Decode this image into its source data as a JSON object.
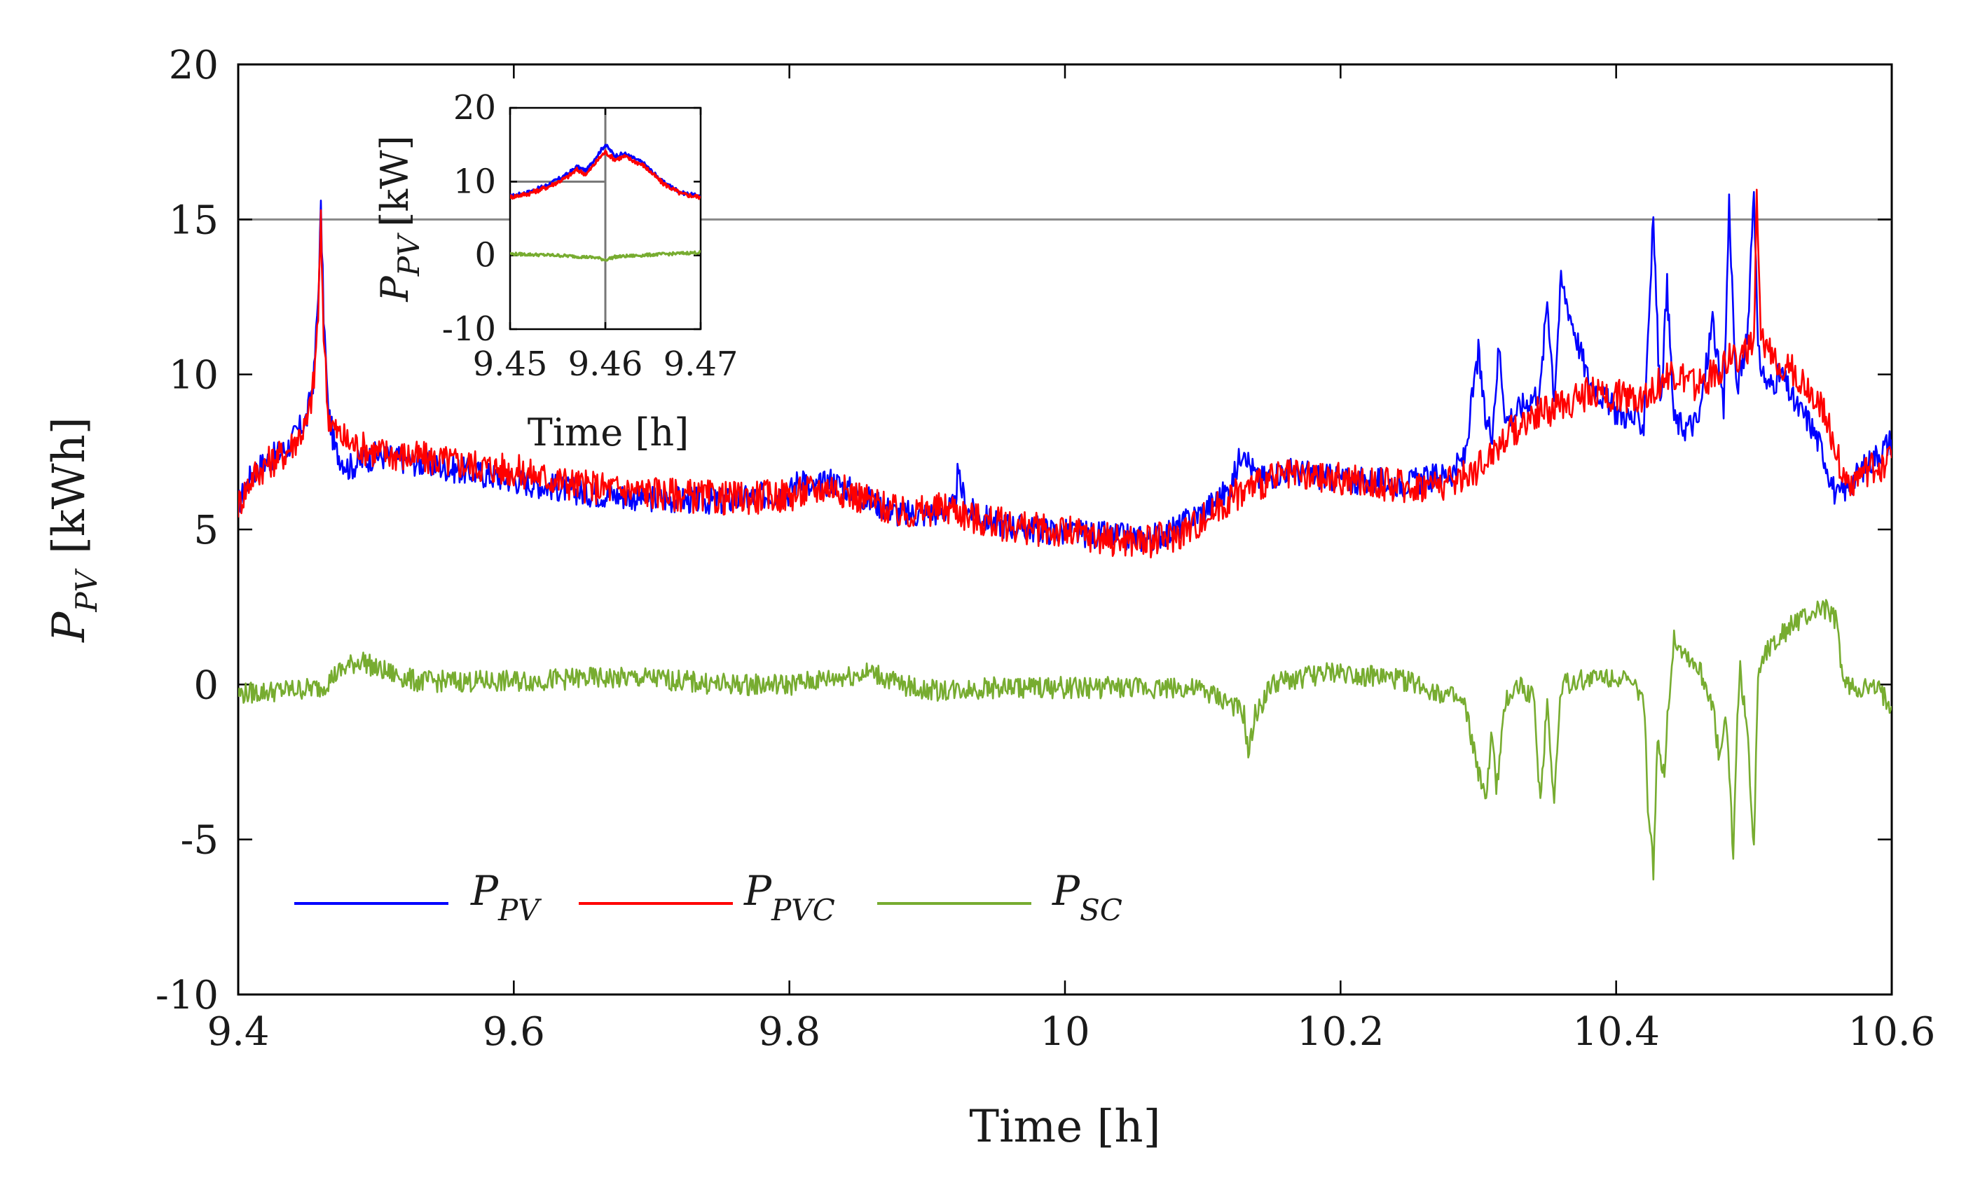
{
  "chart_data": [
    {
      "id": "main",
      "type": "line",
      "title": "",
      "xlabel": "Time [h]",
      "ylabel_main": "P",
      "ylabel_sub": "PV",
      "ylabel_unit": "[kWh]",
      "xlim": [
        9.4,
        10.6
      ],
      "ylim": [
        -10,
        20
      ],
      "xticks": [
        9.4,
        9.6,
        9.8,
        10,
        10.2,
        10.4,
        10.6
      ],
      "xtick_labels": [
        "9.4",
        "9.6",
        "9.8",
        "10",
        "10.2",
        "10.4",
        "10.6"
      ],
      "yticks": [
        -10,
        -5,
        0,
        5,
        10,
        15,
        20
      ],
      "ytick_labels": [
        "-10",
        "-5",
        "0",
        "5",
        "10",
        "15",
        "20"
      ],
      "reference_line_y": 15,
      "legend": [
        {
          "main": "P",
          "sub": "PV",
          "color": "#0000ff"
        },
        {
          "main": "P",
          "sub": "PVC",
          "color": "#ff0000"
        },
        {
          "main": "P",
          "sub": "SC",
          "color": "#77ac30"
        }
      ],
      "series": [
        {
          "name": "P_PV",
          "color": "#0000ff",
          "x": [
            9.4,
            9.41,
            9.42,
            9.435,
            9.45,
            9.455,
            9.458,
            9.46,
            9.462,
            9.465,
            9.47,
            9.48,
            9.5,
            9.55,
            9.6,
            9.65,
            9.7,
            9.75,
            9.8,
            9.81,
            9.815,
            9.83,
            9.86,
            9.88,
            9.9,
            9.92,
            9.922,
            9.93,
            9.95,
            9.98,
            10.0,
            10.03,
            10.06,
            10.08,
            10.1,
            10.12,
            10.13,
            10.133,
            10.14,
            10.16,
            10.2,
            10.25,
            10.28,
            10.29,
            10.3,
            10.305,
            10.31,
            10.315,
            10.32,
            10.33,
            10.345,
            10.35,
            10.355,
            10.36,
            10.38,
            10.4,
            10.42,
            10.427,
            10.432,
            10.437,
            10.442,
            10.45,
            10.46,
            10.47,
            10.478,
            10.482,
            10.487,
            10.495,
            10.5,
            10.503,
            10.51,
            10.52,
            10.53,
            10.54,
            10.55,
            10.56,
            10.57,
            10.58,
            10.6
          ],
          "y": [
            5.8,
            6.8,
            7.2,
            7.6,
            8.6,
            10.0,
            12.5,
            15.3,
            12.0,
            9.0,
            7.6,
            7.0,
            7.4,
            7.0,
            6.6,
            6.2,
            6.0,
            5.9,
            6.2,
            6.8,
            6.2,
            6.6,
            5.9,
            5.5,
            5.5,
            5.7,
            6.7,
            5.6,
            5.2,
            5.0,
            4.9,
            4.8,
            4.7,
            5.0,
            5.6,
            6.3,
            7.8,
            7.2,
            6.6,
            6.9,
            6.6,
            6.5,
            6.8,
            7.3,
            10.7,
            8.5,
            8.2,
            10.9,
            8.5,
            8.9,
            9.5,
            12.5,
            9.3,
            13.0,
            9.8,
            8.8,
            8.4,
            15.0,
            9.0,
            12.8,
            8.5,
            8.3,
            8.5,
            11.8,
            8.8,
            15.6,
            9.5,
            11.0,
            16.2,
            10.6,
            9.6,
            10.0,
            9.0,
            8.5,
            7.5,
            6.0,
            6.5,
            7.0,
            7.9
          ]
        },
        {
          "name": "P_PVC",
          "color": "#ff0000",
          "x": [
            9.4,
            9.41,
            9.42,
            9.435,
            9.45,
            9.455,
            9.458,
            9.46,
            9.462,
            9.465,
            9.47,
            9.48,
            9.5,
            9.55,
            9.6,
            9.65,
            9.7,
            9.75,
            9.8,
            9.83,
            9.86,
            9.88,
            9.9,
            9.92,
            9.93,
            9.95,
            9.98,
            10.0,
            10.03,
            10.06,
            10.08,
            10.1,
            10.12,
            10.14,
            10.16,
            10.2,
            10.25,
            10.28,
            10.3,
            10.32,
            10.34,
            10.36,
            10.38,
            10.4,
            10.42,
            10.44,
            10.46,
            10.48,
            10.5,
            10.502,
            10.505,
            10.51,
            10.53,
            10.55,
            10.56,
            10.565,
            10.57,
            10.6
          ],
          "y": [
            5.8,
            6.7,
            7.1,
            7.5,
            8.4,
            9.8,
            12.0,
            14.8,
            11.5,
            8.8,
            8.2,
            7.8,
            7.5,
            7.2,
            6.9,
            6.4,
            6.2,
            6.0,
            6.1,
            6.4,
            5.9,
            5.5,
            5.6,
            5.7,
            5.4,
            5.2,
            5.0,
            4.9,
            4.7,
            4.6,
            4.8,
            5.3,
            6.0,
            6.5,
            6.7,
            6.6,
            6.4,
            6.5,
            7.0,
            8.0,
            8.7,
            9.0,
            9.4,
            9.3,
            9.3,
            10.0,
            9.6,
            10.4,
            10.9,
            15.5,
            11.0,
            10.8,
            10.0,
            9.0,
            7.5,
            6.6,
            6.5,
            7.3
          ]
        },
        {
          "name": "P_SC",
          "color": "#77ac30",
          "x": [
            9.4,
            9.43,
            9.46,
            9.47,
            9.48,
            9.49,
            9.5,
            9.53,
            9.6,
            9.65,
            9.7,
            9.75,
            9.8,
            9.83,
            9.86,
            9.88,
            9.9,
            9.95,
            10.0,
            10.05,
            10.08,
            10.1,
            10.12,
            10.13,
            10.133,
            10.138,
            10.15,
            10.18,
            10.2,
            10.25,
            10.28,
            10.29,
            10.3,
            10.305,
            10.31,
            10.313,
            10.32,
            10.33,
            10.34,
            10.345,
            10.35,
            10.355,
            10.36,
            10.38,
            10.4,
            10.41,
            10.42,
            10.423,
            10.427,
            10.43,
            10.435,
            10.438,
            10.442,
            10.45,
            10.46,
            10.47,
            10.475,
            10.48,
            10.485,
            10.488,
            10.49,
            10.495,
            10.5,
            10.503,
            10.51,
            10.53,
            10.54,
            10.55,
            10.56,
            10.565,
            10.57,
            10.59,
            10.6
          ],
          "y": [
            -0.3,
            -0.2,
            -0.1,
            0.3,
            0.6,
            0.8,
            0.5,
            0.1,
            0.1,
            0.2,
            0.2,
            0.0,
            0.0,
            0.2,
            0.4,
            0.0,
            -0.2,
            -0.1,
            -0.1,
            -0.1,
            -0.1,
            -0.2,
            -0.6,
            -1.0,
            -2.3,
            -1.0,
            0.0,
            0.3,
            0.4,
            0.1,
            -0.4,
            -0.7,
            -2.8,
            -3.8,
            -1.5,
            -3.5,
            -0.5,
            0.0,
            -0.4,
            -3.8,
            -0.5,
            -3.8,
            0.0,
            0.2,
            0.3,
            0.0,
            -0.4,
            -3.8,
            -6.0,
            -2.0,
            -2.8,
            -0.5,
            1.5,
            1.0,
            0.5,
            -0.6,
            -2.5,
            -1.0,
            -5.5,
            -1.0,
            0.5,
            -1.5,
            -5.2,
            0.5,
            1.2,
            2.0,
            2.2,
            2.5,
            2.0,
            0.0,
            -0.1,
            -0.2,
            -0.7
          ]
        }
      ]
    },
    {
      "id": "inset",
      "type": "line",
      "title": "",
      "xlabel": "Time [h]",
      "ylabel_main": "P",
      "ylabel_sub": "PV",
      "ylabel_unit": "[kW]",
      "xlim": [
        9.45,
        9.47
      ],
      "ylim": [
        -10,
        20
      ],
      "xticks": [
        9.45,
        9.46,
        9.47
      ],
      "xtick_labels": [
        "9.45",
        "9.46",
        "9.47"
      ],
      "yticks": [
        -10,
        0,
        10,
        20
      ],
      "ytick_labels": [
        "-10",
        "0",
        "10",
        "20"
      ],
      "marker_line_x": 9.46,
      "marker_line_y": 10,
      "series": [
        {
          "name": "P_PV",
          "color": "#0000ff",
          "x": [
            9.45,
            9.452,
            9.454,
            9.456,
            9.457,
            9.458,
            9.4595,
            9.46,
            9.461,
            9.462,
            9.464,
            9.466,
            9.468,
            9.47
          ],
          "y": [
            8.0,
            8.6,
            9.6,
            11.0,
            12.0,
            11.5,
            14.2,
            15.0,
            13.5,
            13.8,
            12.5,
            10.0,
            8.5,
            8.0
          ]
        },
        {
          "name": "P_PVC",
          "color": "#ff0000",
          "x": [
            9.45,
            9.452,
            9.454,
            9.456,
            9.457,
            9.458,
            9.4595,
            9.46,
            9.461,
            9.462,
            9.464,
            9.466,
            9.468,
            9.47
          ],
          "y": [
            7.9,
            8.4,
            9.3,
            10.6,
            11.6,
            11.0,
            13.4,
            14.0,
            13.0,
            13.4,
            12.2,
            9.8,
            8.3,
            7.9
          ]
        },
        {
          "name": "P_SC",
          "color": "#77ac30",
          "x": [
            9.45,
            9.455,
            9.459,
            9.46,
            9.461,
            9.465,
            9.47
          ],
          "y": [
            0.2,
            0.0,
            -0.3,
            -0.6,
            -0.2,
            0.1,
            0.4
          ]
        }
      ]
    }
  ]
}
